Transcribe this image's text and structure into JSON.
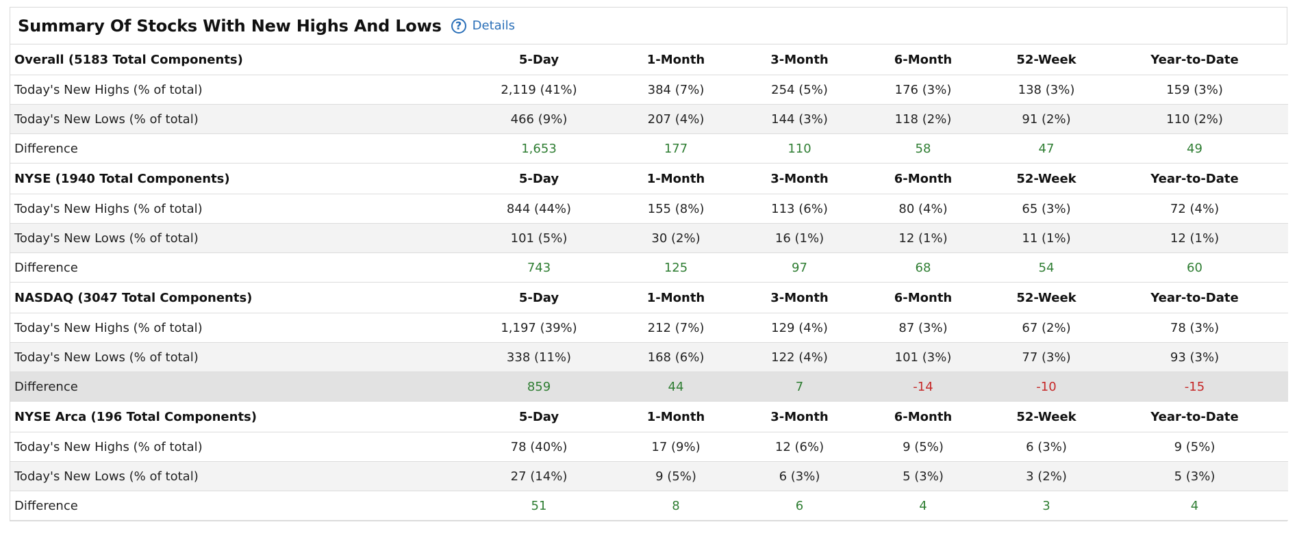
{
  "panel": {
    "title": "Summary Of Stocks With New Highs And Lows",
    "help_icon_glyph": "?",
    "details_label": "Details"
  },
  "columns": [
    "5-Day",
    "1-Month",
    "3-Month",
    "6-Month",
    "52-Week",
    "Year-to-Date"
  ],
  "colors": {
    "positive": "#2e7d32",
    "negative": "#c62828",
    "link": "#2a6fb8"
  },
  "sections": [
    {
      "header": "Overall (5183 Total Components)",
      "highs_label": "Today's New Highs (% of total)",
      "highs": [
        "2,119 (41%)",
        "384 (7%)",
        "254 (5%)",
        "176 (3%)",
        "138 (3%)",
        "159 (3%)"
      ],
      "lows_label": "Today's New Lows (% of total)",
      "lows": [
        "466 (9%)",
        "207 (4%)",
        "144 (3%)",
        "118 (2%)",
        "91 (2%)",
        "110 (2%)"
      ],
      "diff_label": "Difference",
      "diff": [
        "1,653",
        "177",
        "110",
        "58",
        "47",
        "49"
      ]
    },
    {
      "header": "NYSE (1940 Total Components)",
      "highs_label": "Today's New Highs (% of total)",
      "highs": [
        "844 (44%)",
        "155 (8%)",
        "113 (6%)",
        "80 (4%)",
        "65 (3%)",
        "72 (4%)"
      ],
      "lows_label": "Today's New Lows (% of total)",
      "lows": [
        "101 (5%)",
        "30 (2%)",
        "16 (1%)",
        "12 (1%)",
        "11 (1%)",
        "12 (1%)"
      ],
      "diff_label": "Difference",
      "diff": [
        "743",
        "125",
        "97",
        "68",
        "54",
        "60"
      ]
    },
    {
      "header": "NASDAQ (3047 Total Components)",
      "highs_label": "Today's New Highs (% of total)",
      "highs": [
        "1,197 (39%)",
        "212 (7%)",
        "129 (4%)",
        "87 (3%)",
        "67 (2%)",
        "78 (3%)"
      ],
      "lows_label": "Today's New Lows (% of total)",
      "lows": [
        "338 (11%)",
        "168 (6%)",
        "122 (4%)",
        "101 (3%)",
        "77 (3%)",
        "93 (3%)"
      ],
      "diff_label": "Difference",
      "diff": [
        "859",
        "44",
        "7",
        "-14",
        "-10",
        "-15"
      ]
    },
    {
      "header": "NYSE Arca (196 Total Components)",
      "highs_label": "Today's New Highs (% of total)",
      "highs": [
        "78 (40%)",
        "17 (9%)",
        "12 (6%)",
        "9 (5%)",
        "6 (3%)",
        "9 (5%)"
      ],
      "lows_label": "Today's New Lows (% of total)",
      "lows": [
        "27 (14%)",
        "9 (5%)",
        "6 (3%)",
        "5 (3%)",
        "3 (2%)",
        "5 (3%)"
      ],
      "diff_label": "Difference",
      "diff": [
        "51",
        "8",
        "6",
        "4",
        "3",
        "4"
      ]
    }
  ]
}
